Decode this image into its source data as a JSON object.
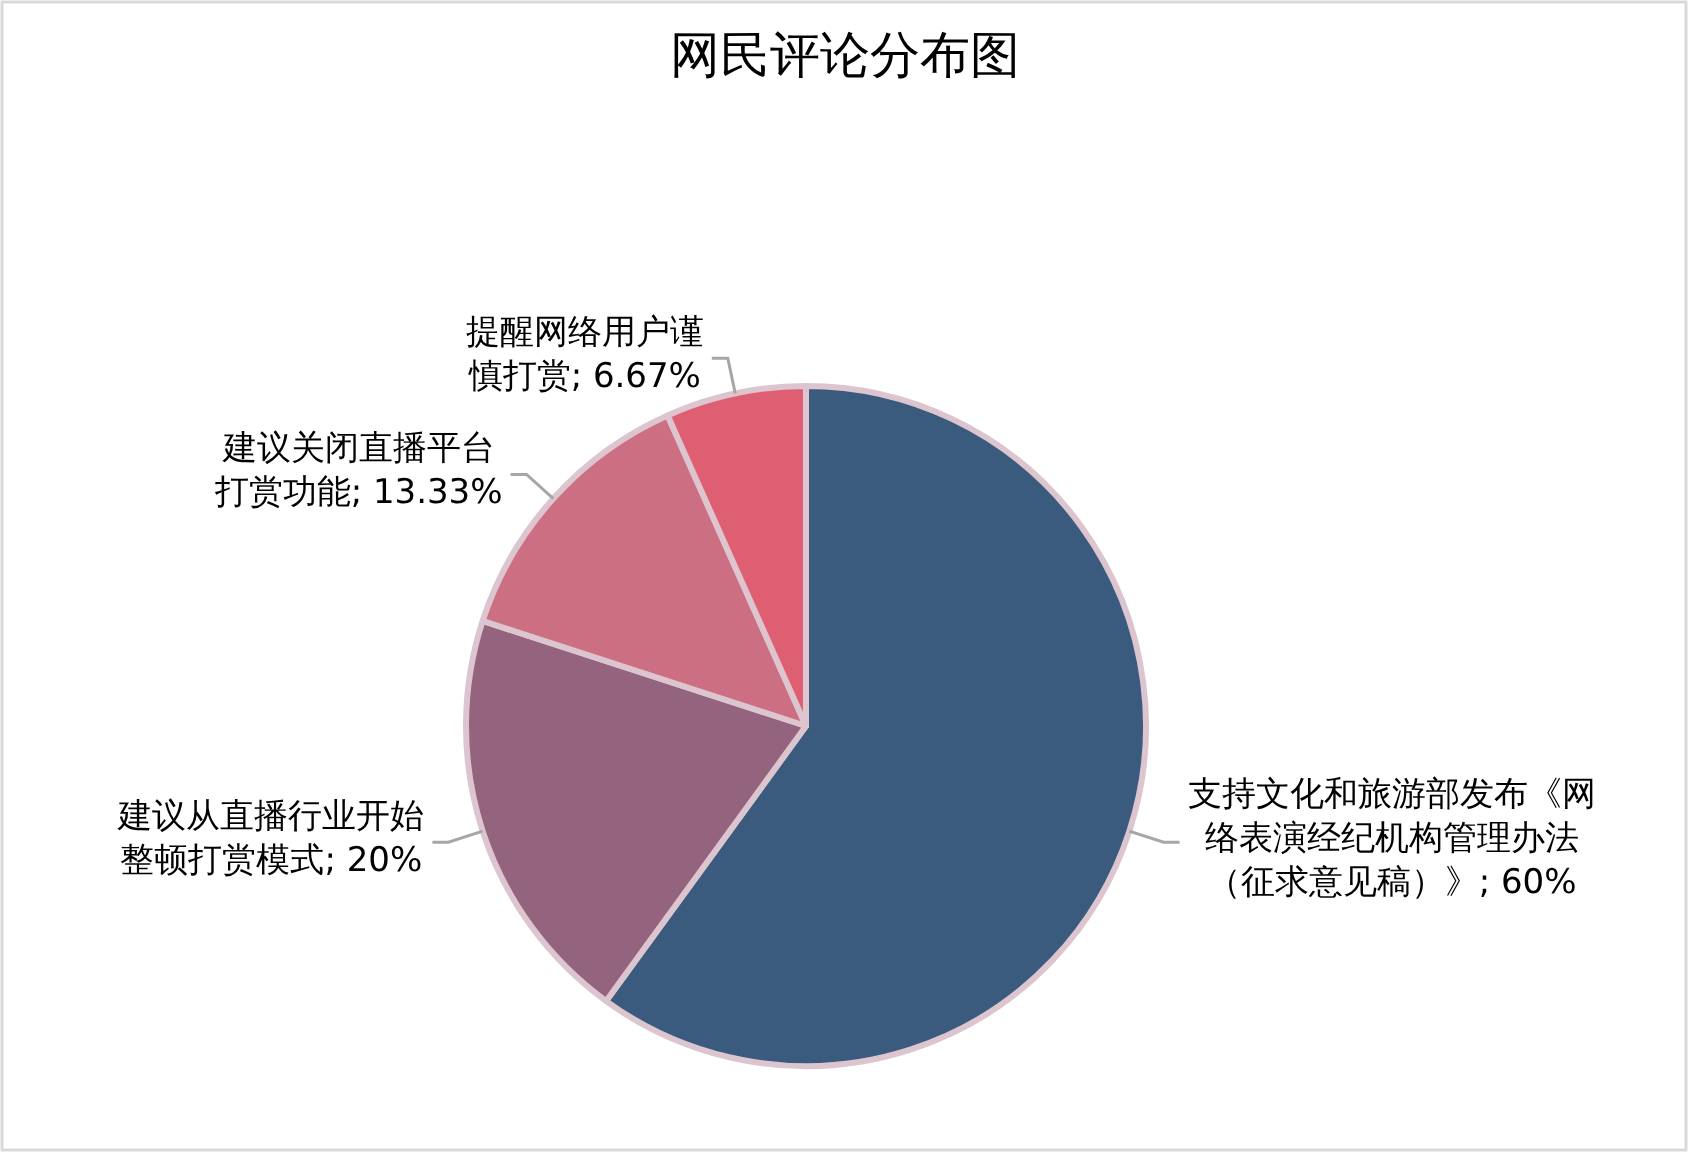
{
  "chart_data": {
    "type": "pie",
    "title": "网民评论分布图",
    "categories": [
      "支持文化和旅游部发布《网络表演经纪机构管理办法（征求意见稿）》",
      "建议从直播行业开始整顿打赏模式",
      "建议关闭直播平台打赏功能",
      "提醒网络用户谨慎打赏"
    ],
    "values": [
      60,
      20,
      13.33,
      6.67
    ],
    "value_labels": [
      "; 60%",
      "; 20%",
      "; 13.33%",
      "; 6.67%"
    ],
    "colors": [
      "#3a5b7d",
      "#94647f",
      "#cd6f82",
      "#df5f72"
    ],
    "legend": false
  }
}
